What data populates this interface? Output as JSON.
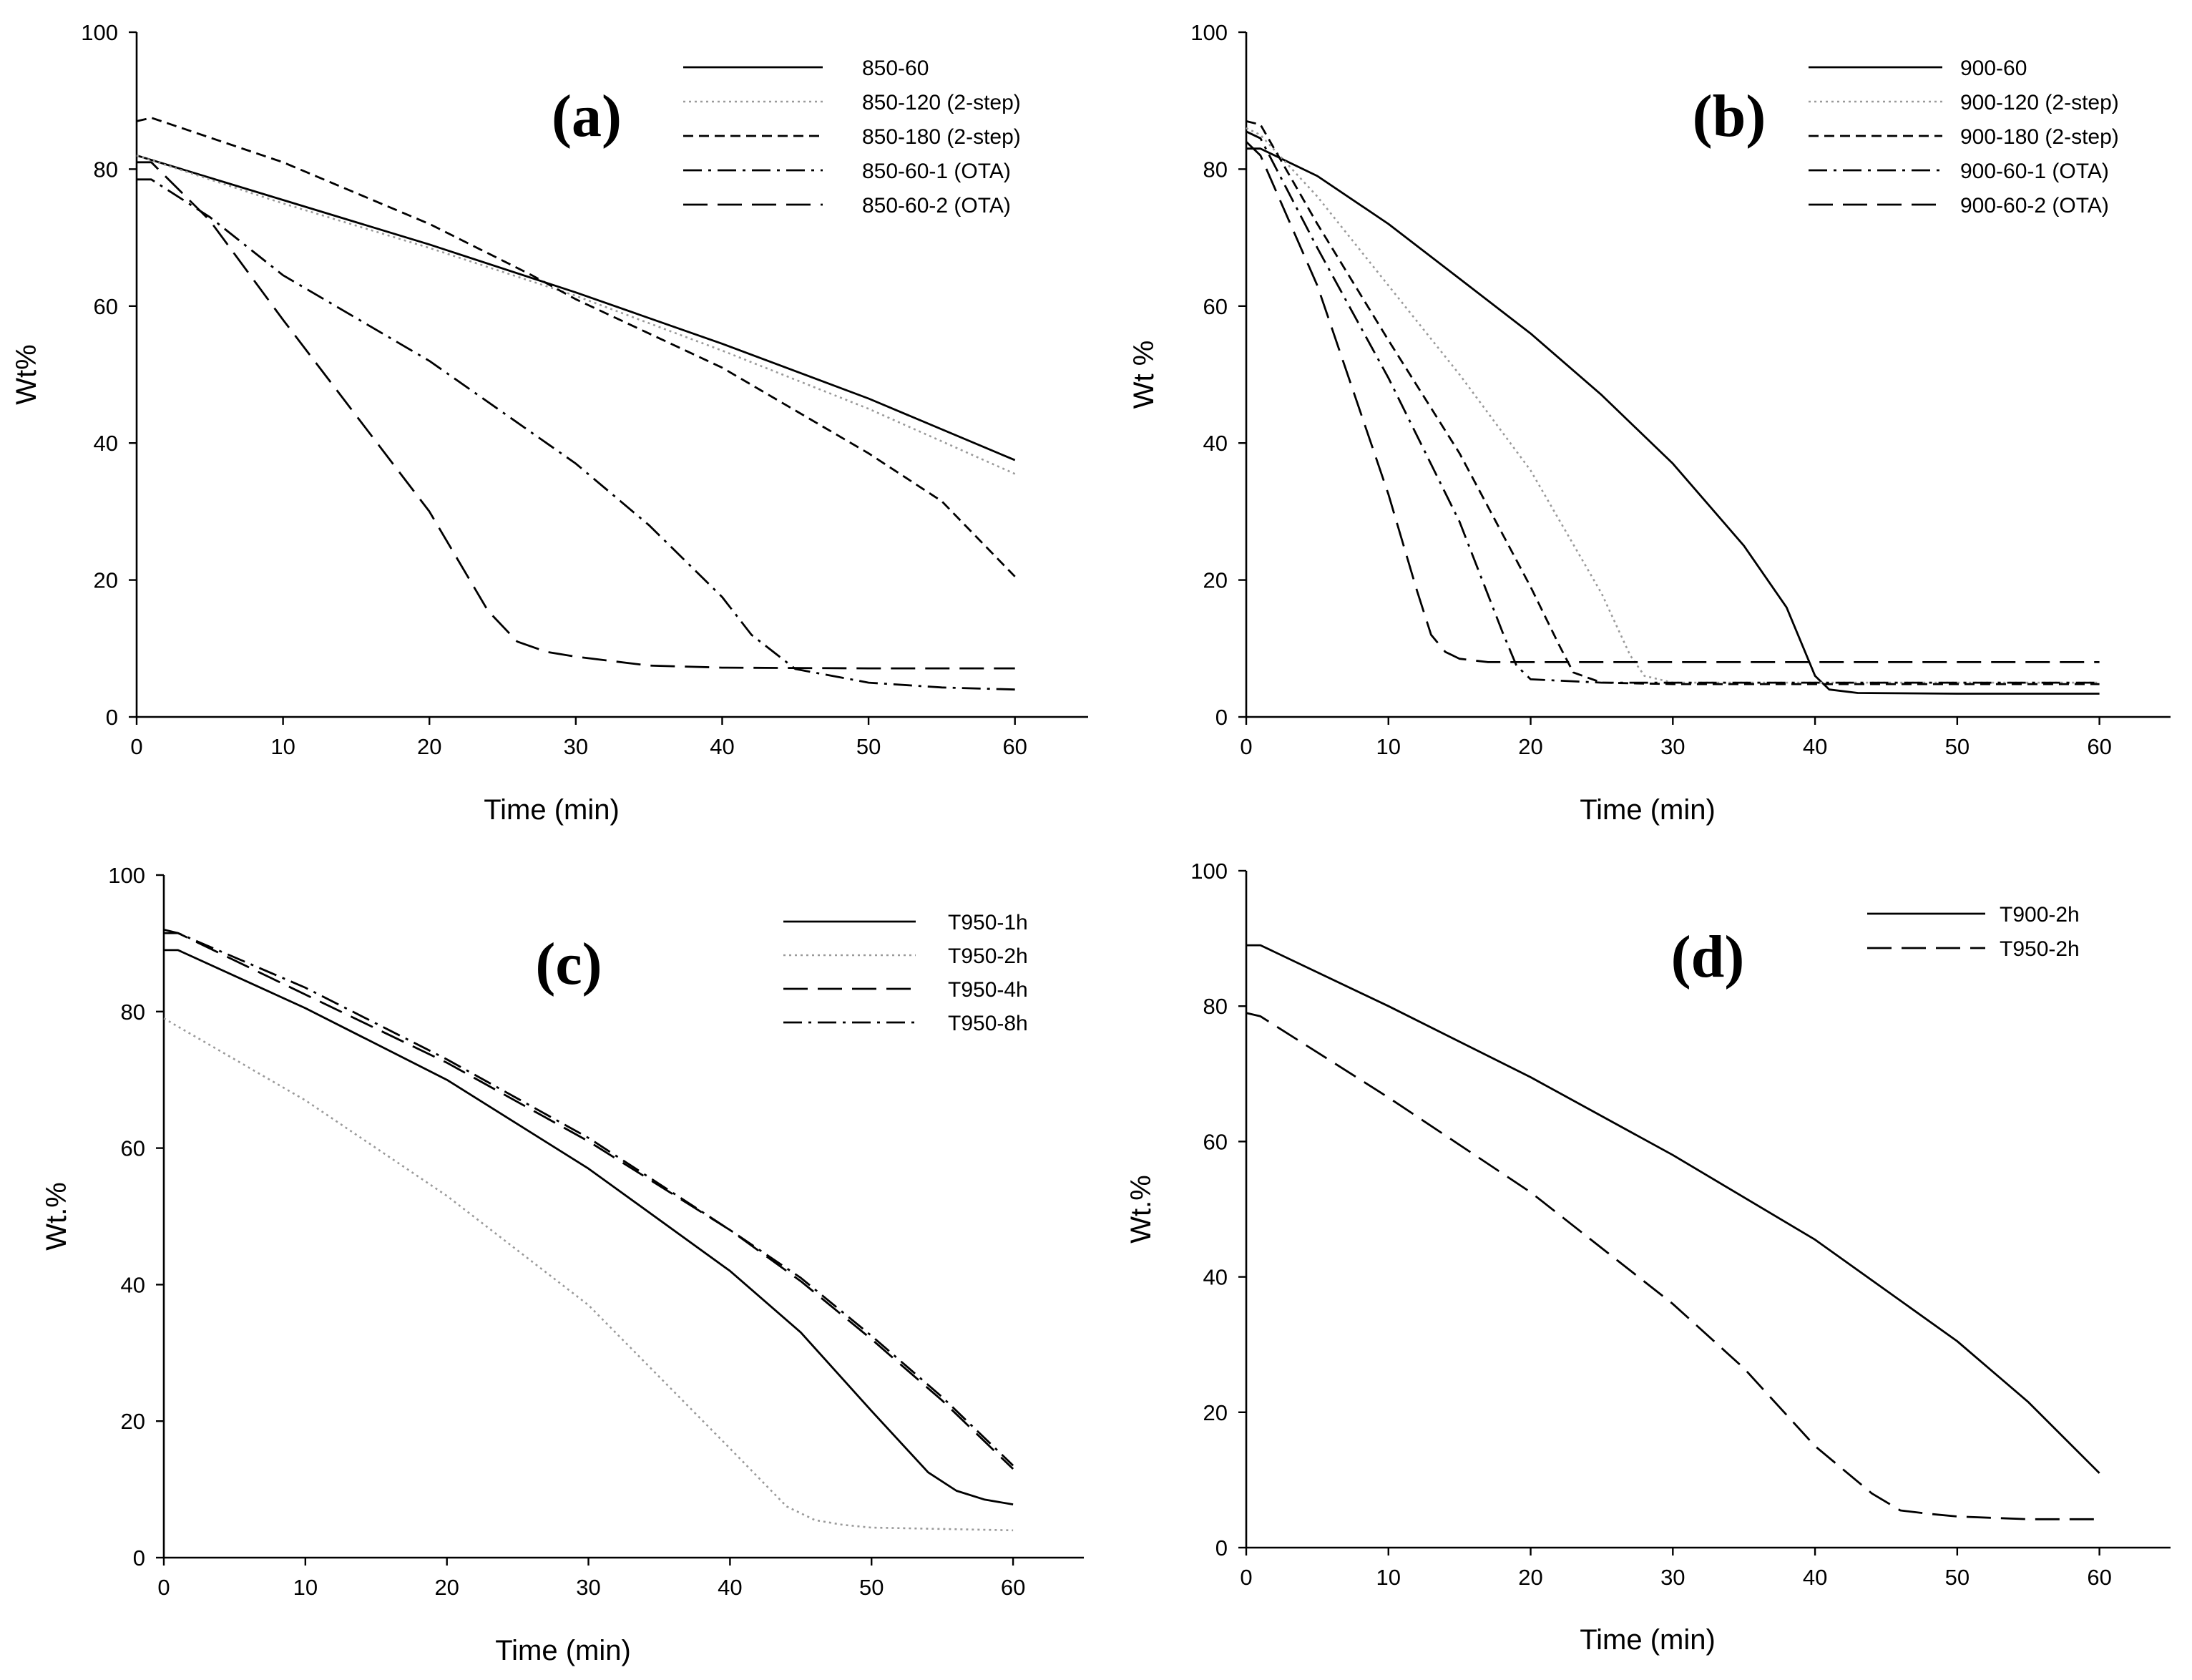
{
  "chart_data": [
    {
      "id": "a",
      "type": "line",
      "panel_label": "(a)",
      "xlabel": "Time (min)",
      "ylabel": "Wt%",
      "xlim": [
        0,
        65
      ],
      "ylim": [
        0,
        100
      ],
      "xticks": [
        0,
        10,
        20,
        30,
        40,
        50,
        60
      ],
      "yticks": [
        0,
        20,
        40,
        60,
        80,
        100
      ],
      "grid": false,
      "legend_position": "top-right",
      "series": [
        {
          "name": "850-60",
          "style": "solid",
          "x": [
            0,
            10,
            20,
            30,
            40,
            50,
            60
          ],
          "y": [
            82,
            75.5,
            69,
            62,
            54.5,
            46.5,
            37.5
          ]
        },
        {
          "name": "850-120 (2-step)",
          "style": "dotted",
          "x": [
            0,
            10,
            20,
            30,
            40,
            50,
            60
          ],
          "y": [
            82,
            75,
            68.5,
            61.5,
            53.5,
            45,
            35.5
          ]
        },
        {
          "name": "850-180 (2-step)",
          "style": "dashed",
          "x": [
            0,
            1,
            10,
            20,
            27,
            30,
            40,
            50,
            55,
            60
          ],
          "y": [
            87,
            87.5,
            81,
            72,
            64.5,
            61,
            51,
            38.5,
            31.5,
            20.5
          ]
        },
        {
          "name": "850-60-1 (OTA)",
          "style": "dashdot",
          "x": [
            0,
            1,
            5,
            10,
            20,
            30,
            35,
            40,
            42,
            45,
            50,
            55,
            60
          ],
          "y": [
            78.5,
            78.5,
            73,
            64.5,
            52,
            37,
            28,
            17.5,
            12,
            7,
            5,
            4.3,
            4
          ]
        },
        {
          "name": "850-60-2 (OTA)",
          "style": "longdash",
          "x": [
            0,
            1,
            5,
            10,
            15,
            20,
            24,
            26,
            28,
            30,
            35,
            40,
            50,
            60
          ],
          "y": [
            81,
            81,
            72.5,
            58,
            44,
            30,
            15.5,
            11,
            9.5,
            8.8,
            7.5,
            7.2,
            7.1,
            7.1
          ]
        }
      ]
    },
    {
      "id": "b",
      "type": "line",
      "panel_label": "(b)",
      "xlabel": "Time (min)",
      "ylabel": "Wt %",
      "xlim": [
        0,
        65
      ],
      "ylim": [
        0,
        100
      ],
      "xticks": [
        0,
        10,
        20,
        30,
        40,
        50,
        60
      ],
      "yticks": [
        0,
        20,
        40,
        60,
        80,
        100
      ],
      "grid": false,
      "legend_position": "top-right",
      "series": [
        {
          "name": "900-60",
          "style": "solid",
          "x": [
            0,
            1,
            5,
            10,
            15,
            20,
            25,
            30,
            35,
            38,
            40,
            41,
            43,
            50,
            60
          ],
          "y": [
            83,
            83,
            79,
            72,
            64,
            56,
            47,
            37,
            25,
            16,
            6,
            4,
            3.5,
            3.4,
            3.4
          ]
        },
        {
          "name": "900-120 (2-step)",
          "style": "dotted",
          "x": [
            0,
            1,
            5,
            10,
            15,
            20,
            25,
            27,
            28,
            30,
            40,
            60
          ],
          "y": [
            86,
            85,
            76,
            63,
            50,
            36,
            18,
            9,
            6,
            5,
            5,
            5
          ]
        },
        {
          "name": "900-180 (2-step)",
          "style": "dashed",
          "x": [
            0,
            1,
            5,
            10,
            15,
            20,
            22,
            23,
            25,
            30,
            40,
            60
          ],
          "y": [
            87,
            86.5,
            72,
            55,
            38.5,
            19,
            10.5,
            6.5,
            5,
            4.8,
            4.8,
            4.8
          ]
        },
        {
          "name": "900-60-1 (OTA)",
          "style": "dashdot",
          "x": [
            0,
            1,
            5,
            10,
            15,
            18,
            19,
            20,
            25,
            30,
            40,
            60
          ],
          "y": [
            85.5,
            84.5,
            68.5,
            49.5,
            28.5,
            12.5,
            7.5,
            5.5,
            5,
            5,
            5,
            5
          ]
        },
        {
          "name": "900-60-2 (OTA)",
          "style": "longdash",
          "x": [
            0,
            1,
            5,
            10,
            12,
            13,
            14,
            15,
            17,
            20,
            40,
            60
          ],
          "y": [
            84,
            82,
            63,
            32.5,
            18.5,
            12,
            9.5,
            8.5,
            8,
            8,
            8,
            8
          ]
        }
      ]
    },
    {
      "id": "c",
      "type": "line",
      "panel_label": "(c)",
      "xlabel": "Time (min)",
      "ylabel": "Wt.%",
      "xlim": [
        0,
        65
      ],
      "ylim": [
        0,
        100
      ],
      "xticks": [
        0,
        10,
        20,
        30,
        40,
        50,
        60
      ],
      "yticks": [
        0,
        20,
        40,
        60,
        80,
        100
      ],
      "grid": false,
      "legend_position": "top-right",
      "series": [
        {
          "name": "T950-1h",
          "style": "solid",
          "x": [
            0,
            1,
            10,
            20,
            30,
            40,
            45,
            50,
            54,
            56,
            58,
            60
          ],
          "y": [
            89,
            89,
            80.5,
            70,
            57,
            42,
            33,
            21.5,
            12.5,
            9.8,
            8.5,
            7.8
          ]
        },
        {
          "name": "T950-2h",
          "style": "dotted",
          "x": [
            0,
            10,
            20,
            30,
            40,
            44,
            46,
            48,
            50,
            60
          ],
          "y": [
            79,
            67,
            53,
            37,
            16,
            7.5,
            5.5,
            4.8,
            4.4,
            4
          ]
        },
        {
          "name": "T950-4h",
          "style": "longdash",
          "x": [
            0,
            1,
            10,
            20,
            30,
            40,
            45,
            50,
            55,
            60
          ],
          "y": [
            91.5,
            91.5,
            82.5,
            72.5,
            61,
            48,
            40.5,
            32,
            23,
            13
          ]
        },
        {
          "name": "T950-8h",
          "style": "dashdot",
          "x": [
            0,
            1,
            10,
            20,
            30,
            40,
            45,
            50,
            55,
            60
          ],
          "y": [
            92,
            91.5,
            83.5,
            73,
            61.5,
            48,
            41,
            32.5,
            23.5,
            13.5
          ]
        }
      ]
    },
    {
      "id": "d",
      "type": "line",
      "panel_label": "(d)",
      "xlabel": "Time (min)",
      "ylabel": "Wt.%",
      "xlim": [
        0,
        65
      ],
      "ylim": [
        0,
        100
      ],
      "xticks": [
        0,
        10,
        20,
        30,
        40,
        50,
        60
      ],
      "yticks": [
        0,
        20,
        40,
        60,
        80,
        100
      ],
      "grid": false,
      "legend_position": "top-right",
      "series": [
        {
          "name": "T900-2h",
          "style": "solid",
          "x": [
            0,
            1,
            10,
            20,
            30,
            40,
            50,
            55,
            60
          ],
          "y": [
            89,
            89,
            80,
            69.5,
            58,
            45.5,
            30.5,
            21.5,
            11
          ]
        },
        {
          "name": "T950-2h",
          "style": "longdash",
          "x": [
            0,
            1,
            10,
            20,
            30,
            35,
            40,
            44,
            46,
            48,
            50,
            55,
            60
          ],
          "y": [
            79,
            78.5,
            66.5,
            52.5,
            36,
            26.5,
            15,
            8,
            5.5,
            5,
            4.6,
            4.2,
            4.2
          ]
        }
      ]
    }
  ]
}
